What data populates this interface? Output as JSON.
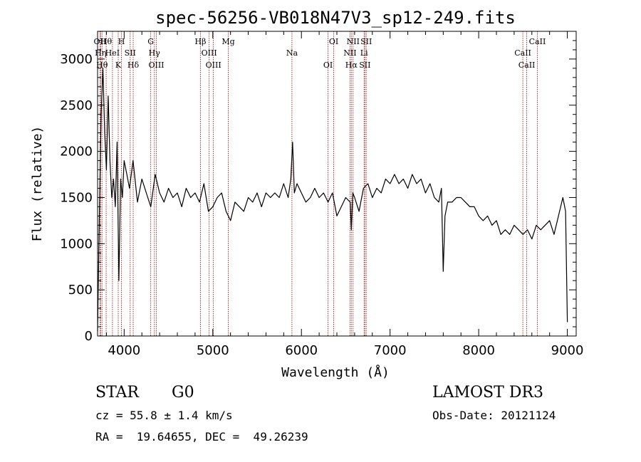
{
  "chart_data": {
    "type": "line",
    "title": "spec-56256-VB018N47V3_sp12-249.fits",
    "xlabel": "Wavelength (Å)",
    "ylabel": "Flux (relative)",
    "xlim": [
      3700,
      9100
    ],
    "ylim": [
      0,
      3300
    ],
    "x_ticks": [
      4000,
      5000,
      6000,
      7000,
      8000,
      9000
    ],
    "x_tick_labels": [
      "4000",
      "5000",
      "6000",
      "7000",
      "8000",
      "9000"
    ],
    "y_ticks": [
      0,
      500,
      1000,
      1500,
      2000,
      2500,
      3000
    ],
    "y_tick_labels": [
      "0",
      "500",
      "1000",
      "1500",
      "2000",
      "2500",
      "3000"
    ],
    "series": [
      {
        "name": "flux",
        "x": [
          3700,
          3720,
          3740,
          3760,
          3780,
          3800,
          3820,
          3840,
          3860,
          3880,
          3900,
          3920,
          3940,
          3960,
          3980,
          4000,
          4030,
          4060,
          4100,
          4150,
          4200,
          4250,
          4300,
          4350,
          4400,
          4450,
          4500,
          4550,
          4600,
          4650,
          4700,
          4750,
          4800,
          4850,
          4900,
          4950,
          5000,
          5050,
          5100,
          5150,
          5200,
          5250,
          5300,
          5350,
          5400,
          5450,
          5500,
          5550,
          5600,
          5650,
          5700,
          5750,
          5800,
          5850,
          5880,
          5900,
          5920,
          5950,
          6000,
          6050,
          6100,
          6150,
          6200,
          6250,
          6300,
          6350,
          6400,
          6450,
          6500,
          6550,
          6563,
          6580,
          6600,
          6650,
          6700,
          6750,
          6800,
          6850,
          6900,
          6950,
          7000,
          7050,
          7100,
          7150,
          7200,
          7250,
          7300,
          7350,
          7400,
          7450,
          7500,
          7550,
          7580,
          7600,
          7620,
          7650,
          7700,
          7750,
          7800,
          7850,
          7900,
          7950,
          8000,
          8050,
          8100,
          8150,
          8200,
          8250,
          8300,
          8350,
          8400,
          8450,
          8500,
          8550,
          8600,
          8650,
          8700,
          8750,
          8800,
          8850,
          8900,
          8950,
          8980,
          9000
        ],
        "values": [
          50,
          1300,
          2400,
          2900,
          2200,
          1800,
          2600,
          1900,
          1500,
          1700,
          1400,
          2100,
          600,
          1700,
          1500,
          1900,
          1750,
          1600,
          1900,
          1450,
          1700,
          1550,
          1400,
          1750,
          1550,
          1450,
          1600,
          1500,
          1550,
          1400,
          1600,
          1500,
          1550,
          1450,
          1650,
          1350,
          1400,
          1500,
          1550,
          1350,
          1250,
          1450,
          1400,
          1350,
          1500,
          1450,
          1550,
          1400,
          1550,
          1500,
          1550,
          1500,
          1650,
          1500,
          1700,
          2100,
          1550,
          1650,
          1550,
          1450,
          1500,
          1600,
          1500,
          1550,
          1450,
          1550,
          1300,
          1400,
          1500,
          1450,
          1150,
          1550,
          1500,
          1350,
          1600,
          1650,
          1500,
          1600,
          1550,
          1700,
          1650,
          1750,
          1650,
          1700,
          1600,
          1750,
          1650,
          1700,
          1550,
          1650,
          1500,
          1450,
          1600,
          700,
          1300,
          1450,
          1450,
          1500,
          1500,
          1450,
          1400,
          1400,
          1300,
          1250,
          1300,
          1200,
          1250,
          1100,
          1150,
          1100,
          1200,
          1150,
          1100,
          1150,
          1050,
          1200,
          1150,
          1200,
          1250,
          1100,
          1300,
          1500,
          1350,
          150
        ]
      }
    ],
    "lines": [
      {
        "x": 3727,
        "label": "OII"
      },
      {
        "x": 3734,
        "label": "Hη"
      },
      {
        "x": 3750,
        "label": "Hθ"
      },
      {
        "x": 3797,
        "label": "Hθ"
      },
      {
        "x": 3868,
        "label": "HeI"
      },
      {
        "x": 3933,
        "label": "K"
      },
      {
        "x": 3970,
        "label": "H"
      },
      {
        "x": 4068,
        "label": "SII"
      },
      {
        "x": 4102,
        "label": "Hδ"
      },
      {
        "x": 4300,
        "label": "G"
      },
      {
        "x": 4341,
        "label": "Hγ"
      },
      {
        "x": 4363,
        "label": "OIII"
      },
      {
        "x": 4861,
        "label": "Hβ"
      },
      {
        "x": 4959,
        "label": "OIII"
      },
      {
        "x": 5007,
        "label": "OIII"
      },
      {
        "x": 5175,
        "label": "Mg"
      },
      {
        "x": 5893,
        "label": "Na"
      },
      {
        "x": 6300,
        "label": "OI"
      },
      {
        "x": 6364,
        "label": "OI"
      },
      {
        "x": 6548,
        "label": "NII"
      },
      {
        "x": 6563,
        "label": "Hα"
      },
      {
        "x": 6583,
        "label": "NII"
      },
      {
        "x": 6707,
        "label": "Li"
      },
      {
        "x": 6716,
        "label": "SII"
      },
      {
        "x": 6731,
        "label": "SII"
      },
      {
        "x": 8498,
        "label": "CaII"
      },
      {
        "x": 8542,
        "label": "CaII"
      },
      {
        "x": 8662,
        "label": "CaII"
      }
    ]
  },
  "info": {
    "class_label": "STAR",
    "subclass_label": "G0",
    "survey": "LAMOST DR3",
    "cz": "cz = 55.8 ± 1.4 km/s",
    "obs_date": "Obs-Date: 20121124",
    "radec": "RA =  19.64655, DEC =  49.26239"
  },
  "colors": {
    "line_marker": "#a00000",
    "spectrum": "#000000"
  }
}
